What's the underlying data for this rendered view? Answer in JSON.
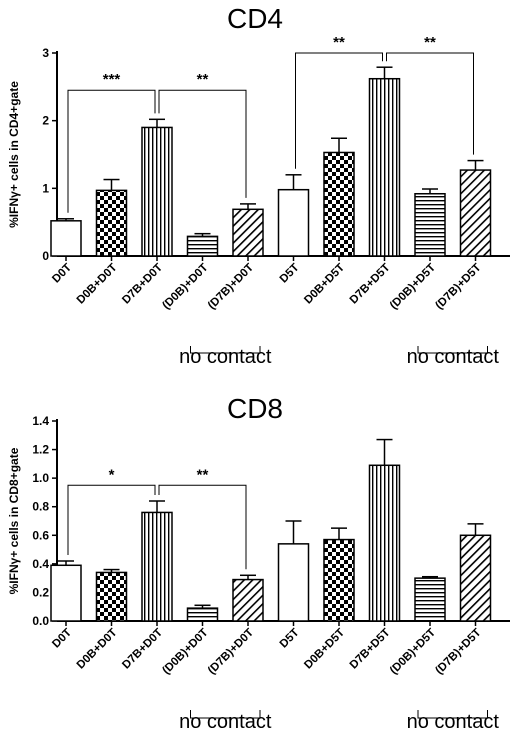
{
  "chart_data": [
    {
      "type": "bar",
      "title": "CD4",
      "ylabel": "%IFNγ+ cells in CD4+gate",
      "ylim": [
        0,
        3
      ],
      "yticks": [
        "0",
        "1",
        "2",
        "3"
      ],
      "categories": [
        "D0T",
        "D0B+D0T",
        "D7B+D0T",
        "(D0B)+D0T",
        "(D7B)+D0T",
        "D5T",
        "D0B+D5T",
        "D7B+D5T",
        "(D0B)+D5T",
        "(D7B)+D5T"
      ],
      "patterns": [
        "white",
        "checker",
        "vertical",
        "horizontal",
        "diagonal",
        "white",
        "checker",
        "vertical",
        "horizontal",
        "diagonal"
      ],
      "values": [
        0.52,
        0.97,
        1.9,
        0.29,
        0.69,
        0.98,
        1.53,
        2.62,
        0.92,
        1.27
      ],
      "errors": [
        0.03,
        0.16,
        0.12,
        0.04,
        0.08,
        0.22,
        0.21,
        0.17,
        0.07,
        0.14
      ],
      "group_labels": [
        {
          "text": "no contact",
          "from": 3,
          "to": 4
        },
        {
          "text": "no contact",
          "from": 8,
          "to": 9
        }
      ],
      "significance": [
        {
          "from": 0,
          "to": 2,
          "label": "***",
          "y": 2.45
        },
        {
          "from": 2,
          "to": 4,
          "label": "**",
          "y": 2.45
        },
        {
          "from": 5,
          "to": 7,
          "label": "**",
          "y": 3.0
        },
        {
          "from": 7,
          "to": 9,
          "label": "**",
          "y": 3.0
        }
      ]
    },
    {
      "type": "bar",
      "title": "CD8",
      "ylabel": "%IFNγ+ cells in CD8+gate",
      "ylim": [
        0,
        1.4
      ],
      "yticks": [
        "0.0",
        "0.2",
        "0.4",
        "0.6",
        "0.8",
        "1.0",
        "1.2",
        "1.4"
      ],
      "categories": [
        "D0T",
        "D0B+D0T",
        "D7B+D0T",
        "(D0B)+D0T",
        "(D7B)+D0T",
        "D5T",
        "D0B+D5T",
        "D7B+D5T",
        "(D0B)+D5T",
        "(D7B)+D5T"
      ],
      "patterns": [
        "white",
        "checker",
        "vertical",
        "horizontal",
        "diagonal",
        "white",
        "checker",
        "vertical",
        "horizontal",
        "diagonal"
      ],
      "values": [
        0.39,
        0.34,
        0.76,
        0.09,
        0.29,
        0.54,
        0.57,
        1.09,
        0.3,
        0.6
      ],
      "errors": [
        0.03,
        0.02,
        0.08,
        0.02,
        0.03,
        0.16,
        0.08,
        0.18,
        0.01,
        0.08
      ],
      "group_labels": [
        {
          "text": "no contact",
          "from": 3,
          "to": 4
        },
        {
          "text": "no contact",
          "from": 8,
          "to": 9
        }
      ],
      "significance": [
        {
          "from": 0,
          "to": 2,
          "label": "*",
          "y": 0.95
        },
        {
          "from": 2,
          "to": 4,
          "label": "**",
          "y": 0.95
        }
      ]
    }
  ]
}
